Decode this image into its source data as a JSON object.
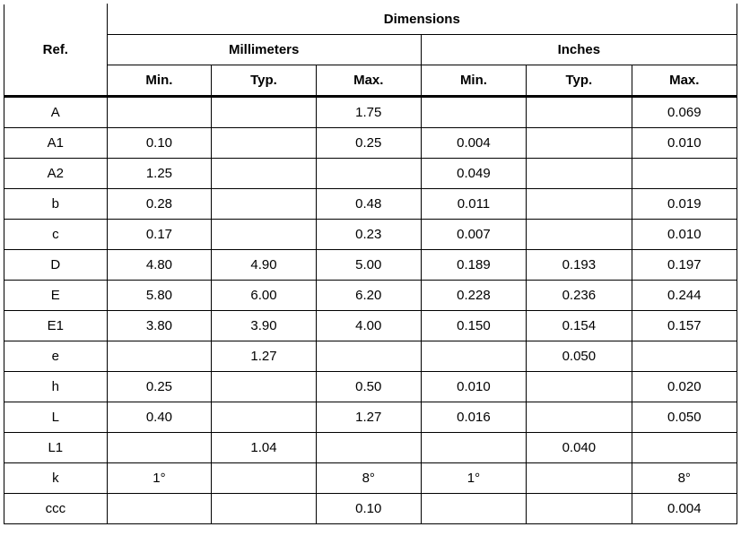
{
  "table": {
    "header": {
      "ref": "Ref.",
      "dimensions": "Dimensions",
      "mm": "Millimeters",
      "in": "Inches",
      "min": "Min.",
      "typ": "Typ.",
      "max": "Max."
    },
    "rows": [
      {
        "ref": "A",
        "mm_min": "",
        "mm_typ": "",
        "mm_max": "1.75",
        "in_min": "",
        "in_typ": "",
        "in_max": "0.069"
      },
      {
        "ref": "A1",
        "mm_min": "0.10",
        "mm_typ": "",
        "mm_max": "0.25",
        "in_min": "0.004",
        "in_typ": "",
        "in_max": "0.010"
      },
      {
        "ref": "A2",
        "mm_min": "1.25",
        "mm_typ": "",
        "mm_max": "",
        "in_min": "0.049",
        "in_typ": "",
        "in_max": ""
      },
      {
        "ref": "b",
        "mm_min": "0.28",
        "mm_typ": "",
        "mm_max": "0.48",
        "in_min": "0.011",
        "in_typ": "",
        "in_max": "0.019"
      },
      {
        "ref": "c",
        "mm_min": "0.17",
        "mm_typ": "",
        "mm_max": "0.23",
        "in_min": "0.007",
        "in_typ": "",
        "in_max": "0.010"
      },
      {
        "ref": "D",
        "mm_min": "4.80",
        "mm_typ": "4.90",
        "mm_max": "5.00",
        "in_min": "0.189",
        "in_typ": "0.193",
        "in_max": "0.197"
      },
      {
        "ref": "E",
        "mm_min": "5.80",
        "mm_typ": "6.00",
        "mm_max": "6.20",
        "in_min": "0.228",
        "in_typ": "0.236",
        "in_max": "0.244"
      },
      {
        "ref": "E1",
        "mm_min": "3.80",
        "mm_typ": "3.90",
        "mm_max": "4.00",
        "in_min": "0.150",
        "in_typ": "0.154",
        "in_max": "0.157"
      },
      {
        "ref": "e",
        "mm_min": "",
        "mm_typ": "1.27",
        "mm_max": "",
        "in_min": "",
        "in_typ": "0.050",
        "in_max": ""
      },
      {
        "ref": "h",
        "mm_min": "0.25",
        "mm_typ": "",
        "mm_max": "0.50",
        "in_min": "0.010",
        "in_typ": "",
        "in_max": "0.020"
      },
      {
        "ref": "L",
        "mm_min": "0.40",
        "mm_typ": "",
        "mm_max": "1.27",
        "in_min": "0.016",
        "in_typ": "",
        "in_max": "0.050"
      },
      {
        "ref": "L1",
        "mm_min": "",
        "mm_typ": "1.04",
        "mm_max": "",
        "in_min": "",
        "in_typ": "0.040",
        "in_max": ""
      },
      {
        "ref": "k",
        "mm_min": "1°",
        "mm_typ": "",
        "mm_max": "8°",
        "in_min": "1°",
        "in_typ": "",
        "in_max": "8°"
      },
      {
        "ref": "ccc",
        "mm_min": "",
        "mm_typ": "",
        "mm_max": "0.10",
        "in_min": "",
        "in_typ": "",
        "in_max": "0.004"
      }
    ]
  }
}
